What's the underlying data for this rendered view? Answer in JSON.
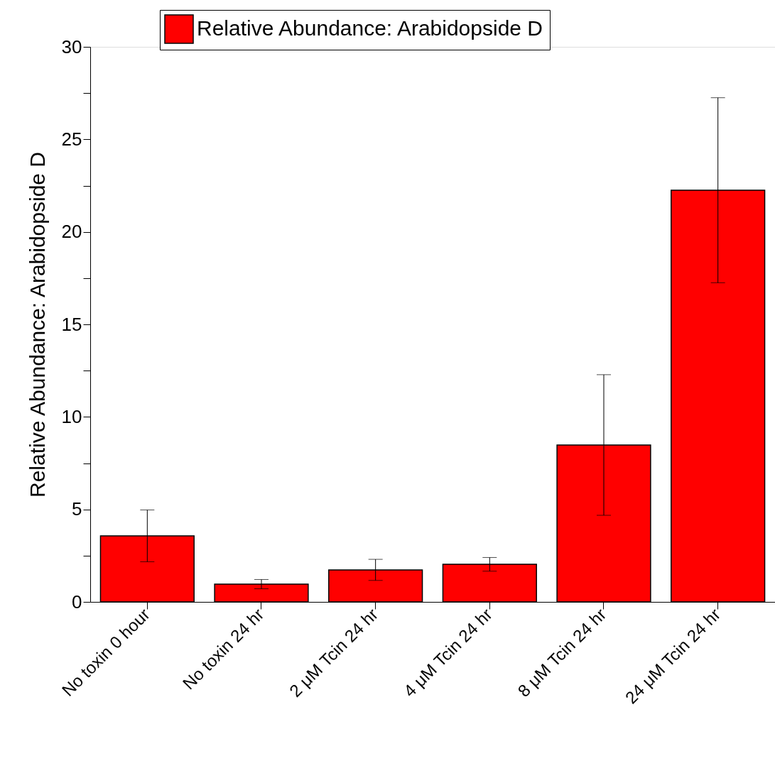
{
  "chart_data": {
    "type": "bar",
    "ylabel": "Relative Abundance: Arabidopside D",
    "categories": [
      "No toxin 0 hour",
      "No toxin 24 hr",
      "2 μM Tcin 24 hr",
      "4 μM Tcin 24 hr",
      "8 μM Tcin 24 hr",
      "24 μM Tcin 24 hr"
    ],
    "series": [
      {
        "name": "Relative Abundance: Arabidopside D",
        "color": "#ff0000",
        "values": [
          3.57,
          0.96,
          1.73,
          2.03,
          8.48,
          22.25
        ],
        "errors": [
          1.4,
          0.25,
          0.57,
          0.37,
          3.8,
          5.0
        ]
      }
    ],
    "ylim": [
      0,
      30
    ],
    "yticks": [
      0,
      {
        "value": 2.5,
        "label": null
      },
      5,
      {
        "value": 7.5,
        "label": null
      },
      10,
      {
        "value": 12.5,
        "label": null
      },
      15,
      {
        "value": 17.5,
        "label": null
      },
      20,
      {
        "value": 22.5,
        "label": null
      },
      25,
      {
        "value": 27.5,
        "label": null
      },
      30
    ],
    "grid": false,
    "legend": "top"
  }
}
